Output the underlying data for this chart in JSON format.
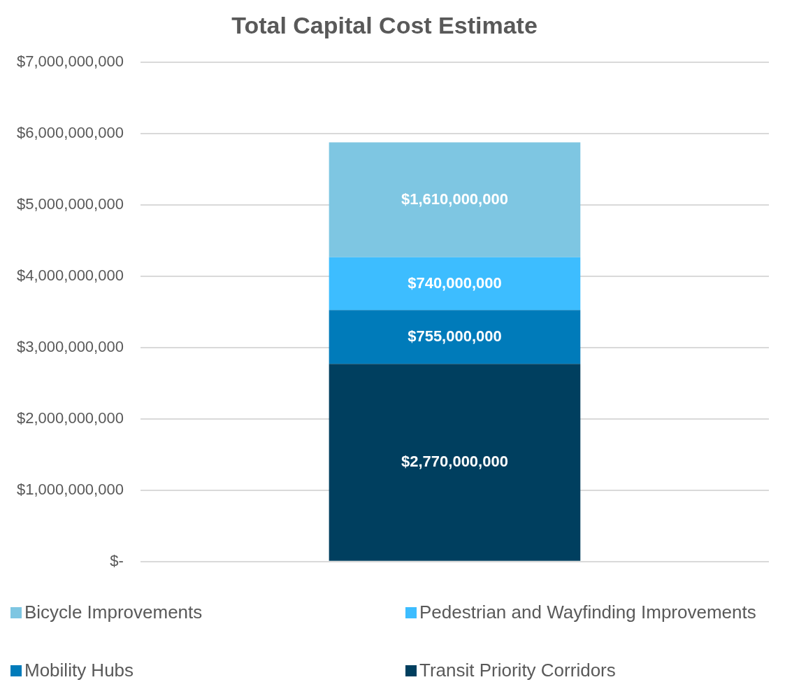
{
  "chart_data": {
    "type": "bar",
    "title": "Total Capital Cost Estimate",
    "stacked": true,
    "categories": [
      null
    ],
    "series": [
      {
        "name": "Transit Priority Corridors",
        "color": "#003f5f",
        "values": [
          2770000000
        ],
        "value_labels": [
          "$2,770,000,000"
        ]
      },
      {
        "name": "Mobility Hubs",
        "color": "#007bba",
        "values": [
          755000000
        ],
        "value_labels": [
          "$755,000,000"
        ]
      },
      {
        "name": "Pedestrian and Wayfinding Improvements",
        "color": "#3dbdff",
        "values": [
          740000000
        ],
        "value_labels": [
          "$740,000,000"
        ]
      },
      {
        "name": "Bicycle Improvements",
        "color": "#7ec6e2",
        "values": [
          1610000000
        ],
        "value_labels": [
          "$1,610,000,000"
        ]
      }
    ],
    "ylim": [
      0,
      7000000000
    ],
    "yticks": [
      {
        "value": 0,
        "label": "$-"
      },
      {
        "value": 1000000000,
        "label": "$1,000,000,000"
      },
      {
        "value": 2000000000,
        "label": "$2,000,000,000"
      },
      {
        "value": 3000000000,
        "label": "$3,000,000,000"
      },
      {
        "value": 4000000000,
        "label": "$4,000,000,000"
      },
      {
        "value": 5000000000,
        "label": "$5,000,000,000"
      },
      {
        "value": 6000000000,
        "label": "$6,000,000,000"
      },
      {
        "value": 7000000000,
        "label": "$7,000,000,000"
      }
    ],
    "grid": "y",
    "tick_labels": "y",
    "legend": "bottom"
  }
}
